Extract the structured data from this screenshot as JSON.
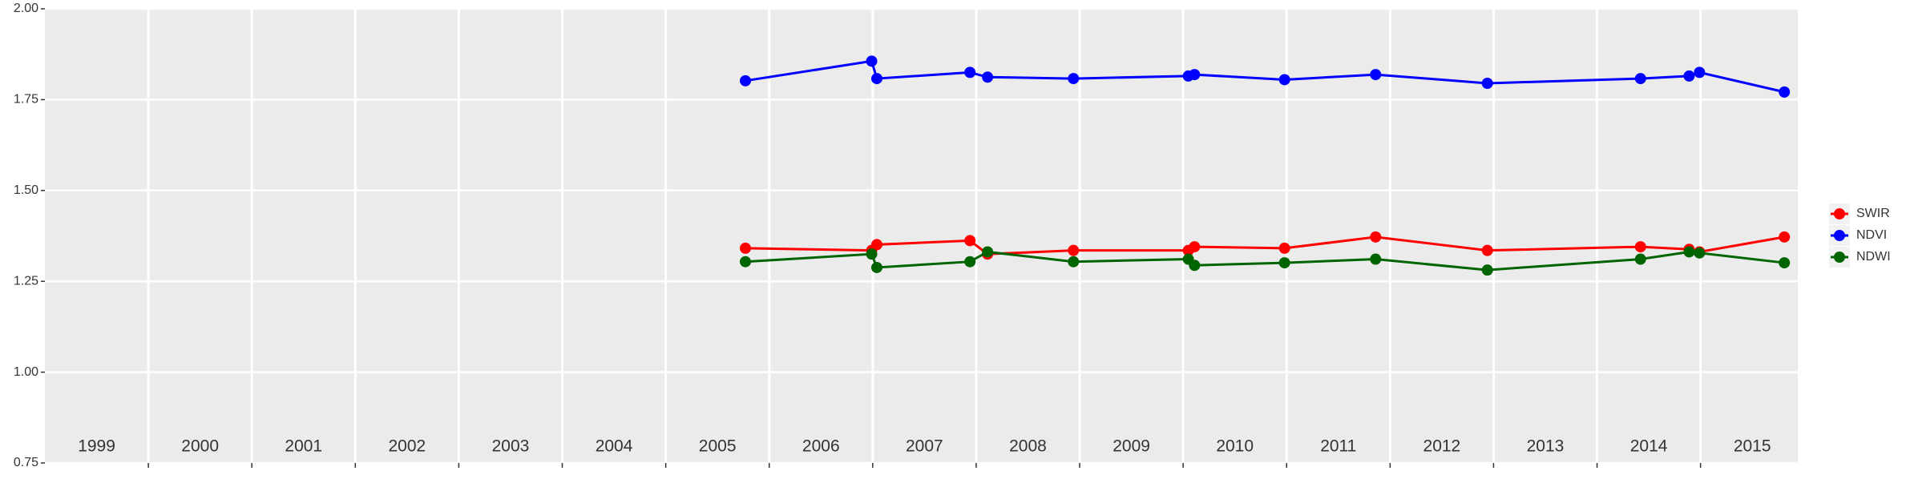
{
  "chart_data": {
    "type": "line",
    "x": [
      2005.77,
      2006.99,
      2007.04,
      2007.94,
      2008.11,
      2008.94,
      2010.05,
      2010.11,
      2010.98,
      2011.86,
      2012.94,
      2014.42,
      2014.89,
      2014.99,
      2015.81
    ],
    "series": [
      {
        "name": "SWIR",
        "color": "#ff0000",
        "values": [
          1.341,
          1.335,
          1.351,
          1.362,
          1.325,
          1.335,
          1.335,
          1.345,
          1.341,
          1.372,
          1.335,
          1.345,
          1.338,
          1.331,
          1.372
        ]
      },
      {
        "name": "NDVI",
        "color": "#0000ff",
        "values": [
          1.802,
          1.856,
          1.808,
          1.825,
          1.812,
          1.808,
          1.815,
          1.819,
          1.805,
          1.819,
          1.795,
          1.808,
          1.815,
          1.825,
          1.771
        ]
      },
      {
        "name": "NDWI",
        "color": "#006400",
        "values": [
          1.304,
          1.325,
          1.288,
          1.304,
          1.331,
          1.304,
          1.311,
          1.294,
          1.301,
          1.311,
          1.281,
          1.311,
          1.331,
          1.328,
          1.301
        ]
      }
    ],
    "xlim": [
      1999,
      2015.94
    ],
    "xticks": [
      2000,
      2001,
      2002,
      2003,
      2004,
      2005,
      2006,
      2007,
      2008,
      2009,
      2010,
      2011,
      2012,
      2013,
      2014,
      2015
    ],
    "ylim": [
      0.75,
      2.0
    ],
    "yticks": [
      {
        "value": 0.75,
        "label": "0.75"
      },
      {
        "value": 1,
        "label": "1.00"
      },
      {
        "value": 1.25,
        "label": "1.25"
      },
      {
        "value": 1.5,
        "label": "1.50"
      },
      {
        "value": 1.75,
        "label": "1.75"
      },
      {
        "value": 2,
        "label": "2.00"
      }
    ],
    "annotations": [
      {
        "x": 1999.5,
        "text": "1999"
      },
      {
        "x": 2000.5,
        "text": "2000"
      },
      {
        "x": 2001.5,
        "text": "2001"
      },
      {
        "x": 2002.5,
        "text": "2002"
      },
      {
        "x": 2003.5,
        "text": "2003"
      },
      {
        "x": 2004.5,
        "text": "2004"
      },
      {
        "x": 2005.5,
        "text": "2005"
      },
      {
        "x": 2006.5,
        "text": "2006"
      },
      {
        "x": 2007.5,
        "text": "2007"
      },
      {
        "x": 2008.5,
        "text": "2008"
      },
      {
        "x": 2009.5,
        "text": "2009"
      },
      {
        "x": 2010.5,
        "text": "2010"
      },
      {
        "x": 2011.5,
        "text": "2011"
      },
      {
        "x": 2012.5,
        "text": "2012"
      },
      {
        "x": 2013.5,
        "text": "2013"
      },
      {
        "x": 2014.5,
        "text": "2014"
      },
      {
        "x": 2015.5,
        "text": "2015"
      }
    ],
    "grid": true,
    "legend": "right"
  }
}
